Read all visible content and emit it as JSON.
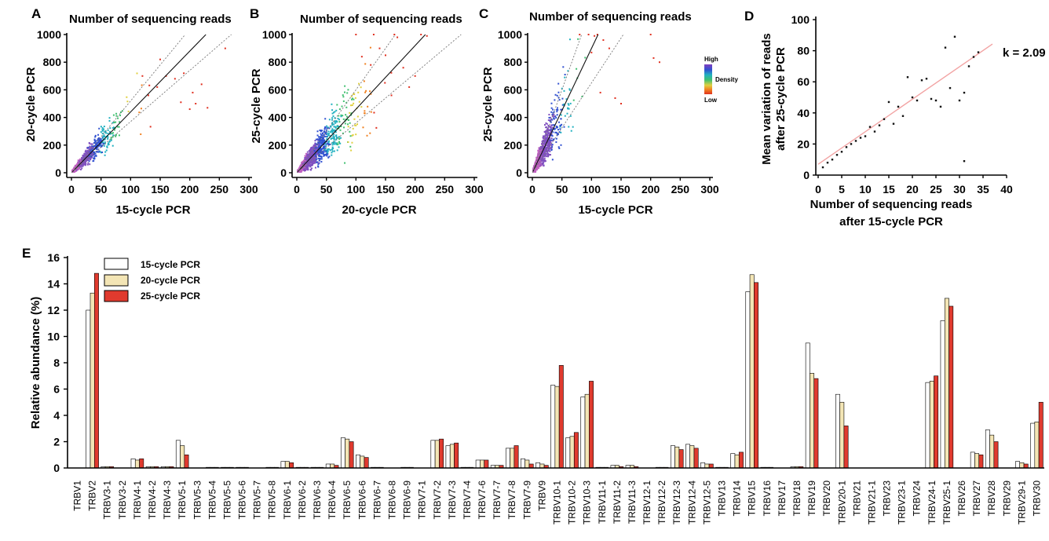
{
  "panel_letters": {
    "a": "A",
    "b": "B",
    "c": "C",
    "d": "D",
    "e": "E"
  },
  "density_legend": {
    "high": "High",
    "label": "Density",
    "low": "Low",
    "colors": [
      "#8040c0",
      "#3050d0",
      "#20b0c0",
      "#40c070",
      "#e0d040",
      "#f08020",
      "#e03020"
    ]
  },
  "chart_data": [
    {
      "id": "A",
      "type": "scatter",
      "title": "Number of sequencing reads",
      "xlabel": "15-cycle PCR",
      "ylabel": "20-cycle PCR",
      "xlim": [
        0,
        300
      ],
      "ylim": [
        0,
        1000
      ],
      "xticks": [
        "0",
        "50",
        "100",
        "150",
        "200",
        "250",
        "300"
      ],
      "yticks": [
        "0",
        "200",
        "400",
        "600",
        "800",
        "1000"
      ],
      "fit_slope": 4.4,
      "band_slopes": [
        3.7,
        5.2
      ],
      "cloud": {
        "xscale": 45,
        "slope": 4.5,
        "spread": 0.22,
        "n": 900
      },
      "outliers": [
        [
          150,
          820
        ],
        [
          160,
          700
        ],
        [
          175,
          680
        ],
        [
          190,
          720
        ],
        [
          205,
          580
        ],
        [
          220,
          640
        ],
        [
          260,
          900
        ],
        [
          200,
          460
        ],
        [
          185,
          510
        ],
        [
          130,
          560
        ],
        [
          145,
          620
        ],
        [
          210,
          500
        ],
        [
          230,
          470
        ],
        [
          120,
          700
        ]
      ],
      "colors": [
        "#c060c0",
        "#8050c0",
        "#3050d0",
        "#20b0c0",
        "#40c070",
        "#e0d040",
        "#f08020",
        "#e03020"
      ]
    },
    {
      "id": "B",
      "type": "scatter",
      "title": "Number of sequencing reads",
      "xlabel": "20-cycle PCR",
      "ylabel": "25-cycle PCR",
      "xlim": [
        0,
        300
      ],
      "ylim": [
        0,
        1000
      ],
      "xticks": [
        "0",
        "50",
        "100",
        "150",
        "200",
        "250",
        "300"
      ],
      "yticks": [
        "0",
        "200",
        "400",
        "600",
        "800",
        "1000"
      ],
      "fit_slope": 4.6,
      "band_slopes": [
        3.6,
        6.0
      ],
      "cloud": {
        "xscale": 55,
        "slope": 4.6,
        "spread": 0.3,
        "n": 1500
      },
      "outliers": [
        [
          100,
          1000
        ],
        [
          130,
          1000
        ],
        [
          165,
          1000
        ],
        [
          170,
          980
        ],
        [
          210,
          1000
        ],
        [
          220,
          990
        ],
        [
          150,
          850
        ],
        [
          180,
          760
        ],
        [
          200,
          700
        ],
        [
          110,
          840
        ],
        [
          125,
          780
        ],
        [
          190,
          620
        ],
        [
          160,
          560
        ],
        [
          140,
          900
        ]
      ],
      "colors": [
        "#c060c0",
        "#8050c0",
        "#3050d0",
        "#20b0c0",
        "#40c070",
        "#e0d040",
        "#f08020",
        "#e03020"
      ]
    },
    {
      "id": "C",
      "type": "scatter",
      "title": "Number of sequencing reads",
      "xlabel": "15-cycle PCR",
      "ylabel": "25-cycle PCR",
      "xlim": [
        0,
        300
      ],
      "ylim": [
        0,
        1000
      ],
      "xticks": [
        "0",
        "50",
        "100",
        "150",
        "200",
        "250",
        "300"
      ],
      "yticks": [
        "0",
        "200",
        "400",
        "600",
        "800",
        "1000"
      ],
      "fit_slope": 9.0,
      "band_slopes": [
        6.5,
        12.0
      ],
      "cloud": {
        "xscale": 30,
        "slope": 9.0,
        "spread": 0.28,
        "n": 1300
      },
      "outliers": [
        [
          80,
          1000
        ],
        [
          95,
          1000
        ],
        [
          105,
          990
        ],
        [
          110,
          1000
        ],
        [
          200,
          1000
        ],
        [
          205,
          830
        ],
        [
          215,
          800
        ],
        [
          120,
          960
        ],
        [
          130,
          900
        ],
        [
          100,
          870
        ],
        [
          140,
          540
        ],
        [
          150,
          500
        ],
        [
          115,
          580
        ]
      ],
      "colors": [
        "#c060c0",
        "#8050c0",
        "#3050d0",
        "#20b0c0",
        "#40c070",
        "#e0d040",
        "#f08020",
        "#e03020"
      ]
    },
    {
      "id": "D",
      "type": "scatter",
      "xlabel": "Number of sequencing reads\nafter 15-cycle PCR",
      "ylabel": "Mean variation of reads\nafter 25-cycle PCR",
      "xlim": [
        0,
        40
      ],
      "ylim": [
        0,
        100
      ],
      "xticks": [
        "0",
        "5",
        "10",
        "15",
        "20",
        "25",
        "30",
        "35",
        "40"
      ],
      "yticks": [
        "0",
        "20",
        "40",
        "60",
        "80",
        "100"
      ],
      "annotation": "k = 2.09",
      "fit": {
        "intercept": 7,
        "slope": 2.09,
        "x_range": [
          0,
          37
        ]
      },
      "points": [
        [
          1,
          5
        ],
        [
          2,
          8
        ],
        [
          3,
          10
        ],
        [
          4,
          13
        ],
        [
          5,
          15
        ],
        [
          6,
          18
        ],
        [
          7,
          20
        ],
        [
          8,
          22
        ],
        [
          9,
          24
        ],
        [
          10,
          25
        ],
        [
          11,
          31
        ],
        [
          12,
          28
        ],
        [
          13,
          32
        ],
        [
          14,
          36
        ],
        [
          15,
          47
        ],
        [
          16,
          33
        ],
        [
          17,
          44
        ],
        [
          18,
          38
        ],
        [
          19,
          63
        ],
        [
          20,
          50
        ],
        [
          21,
          48
        ],
        [
          22,
          61
        ],
        [
          23,
          62
        ],
        [
          24,
          49
        ],
        [
          25,
          48
        ],
        [
          26,
          44
        ],
        [
          27,
          82
        ],
        [
          28,
          56
        ],
        [
          29,
          89
        ],
        [
          30,
          48
        ],
        [
          31,
          53
        ],
        [
          32,
          70
        ],
        [
          33,
          76
        ],
        [
          34,
          79
        ],
        [
          31,
          9
        ]
      ]
    },
    {
      "id": "E",
      "type": "bar",
      "ylabel": "Relative abundance (%)",
      "ylim": [
        0,
        16
      ],
      "yticks": [
        "0",
        "2",
        "4",
        "6",
        "8",
        "10",
        "12",
        "14",
        "16"
      ],
      "categories": [
        "TRBV1",
        "TRBV2",
        "TRBV3-1",
        "TRBV3-2",
        "TRBV4-1",
        "TRBV4-2",
        "TRBV4-3",
        "TRBV5-1",
        "TRBV5-3",
        "TRBV5-4",
        "TRBV5-5",
        "TRBV5-6",
        "TRBV5-7",
        "TRBV5-8",
        "TRBV6-1",
        "TRBV6-2",
        "TRBV6-3",
        "TRBV6-4",
        "TRBV6-5",
        "TRBV6-6",
        "TRBV6-7",
        "TRBV6-8",
        "TRBV6-9",
        "TRBV7-1",
        "TRBV7-2",
        "TRBV7-3",
        "TRBV7-4",
        "TRBV7-6",
        "TRBV7-7",
        "TRBV7-8",
        "TRBV7-9",
        "TRBV9",
        "TRBV10-1",
        "TRBV10-2",
        "TRBV10-3",
        "TRBV11-1",
        "TRBV11-2",
        "TRBV11-3",
        "TRBV12-1",
        "TRBV12-2",
        "TRBV12-3",
        "TRBV12-4",
        "TRBV12-5",
        "TRBV13",
        "TRBV14",
        "TRBV15",
        "TRBV16",
        "TRBV17",
        "TRBV18",
        "TRBV19",
        "TRBV20",
        "TRBV20-1",
        "TRBV21",
        "TRBV21-1",
        "TRBV23",
        "TRBV23-1",
        "TRBV24",
        "TRBV24-1",
        "TRBV25-1",
        "TRBV26",
        "TRBV27",
        "TRBV28",
        "TRBV29",
        "TRBV29-1",
        "TRBV30"
      ],
      "series": [
        {
          "name": "15-cycle PCR",
          "color": "#ffffff",
          "values": [
            0,
            12.0,
            0.1,
            0,
            0.7,
            0.1,
            0.1,
            2.1,
            0,
            0.05,
            0.05,
            0.05,
            0,
            0.05,
            0.5,
            0.05,
            0.05,
            0.3,
            2.3,
            1.0,
            0.05,
            0,
            0.05,
            0,
            2.1,
            1.7,
            0.05,
            0.6,
            0.2,
            1.5,
            0.7,
            0.4,
            6.3,
            2.3,
            5.4,
            0.05,
            0.2,
            0.2,
            0,
            0.05,
            1.7,
            1.8,
            0.4,
            0.05,
            1.1,
            13.4,
            0.05,
            0,
            0.1,
            9.5,
            0,
            5.6,
            0,
            0,
            0,
            0,
            0,
            6.5,
            11.2,
            0,
            1.2,
            2.9,
            0,
            0.5,
            3.4
          ]
        },
        {
          "name": "20-cycle PCR",
          "color": "#f3e5b5",
          "values": [
            0,
            13.3,
            0.1,
            0,
            0.6,
            0.1,
            0.1,
            1.7,
            0,
            0.05,
            0.05,
            0.05,
            0,
            0.05,
            0.5,
            0.05,
            0.05,
            0.3,
            2.2,
            0.9,
            0.05,
            0,
            0.05,
            0,
            2.1,
            1.8,
            0.05,
            0.6,
            0.2,
            1.5,
            0.6,
            0.3,
            6.2,
            2.4,
            5.6,
            0.05,
            0.2,
            0.2,
            0,
            0.05,
            1.6,
            1.7,
            0.3,
            0.05,
            1.0,
            14.7,
            0.05,
            0,
            0.1,
            7.2,
            0,
            5.0,
            0,
            0,
            0,
            0,
            0,
            6.6,
            12.9,
            0,
            1.1,
            2.5,
            0,
            0.4,
            3.5
          ]
        },
        {
          "name": "25-cycle PCR",
          "color": "#e03a2e",
          "values": [
            0,
            14.8,
            0.1,
            0,
            0.7,
            0.1,
            0.1,
            1.0,
            0,
            0.05,
            0.05,
            0.05,
            0,
            0.05,
            0.4,
            0.05,
            0.05,
            0.2,
            2.0,
            0.8,
            0.05,
            0,
            0.05,
            0,
            2.2,
            1.9,
            0.05,
            0.6,
            0.2,
            1.7,
            0.3,
            0.2,
            7.8,
            2.7,
            6.6,
            0.05,
            0.1,
            0.1,
            0,
            0.05,
            1.4,
            1.5,
            0.3,
            0.05,
            1.2,
            14.1,
            0.05,
            0,
            0.1,
            6.8,
            0,
            3.2,
            0,
            0,
            0,
            0,
            0,
            7.0,
            12.3,
            0,
            1.0,
            2.0,
            0,
            0.3,
            5.0
          ]
        }
      ]
    }
  ]
}
